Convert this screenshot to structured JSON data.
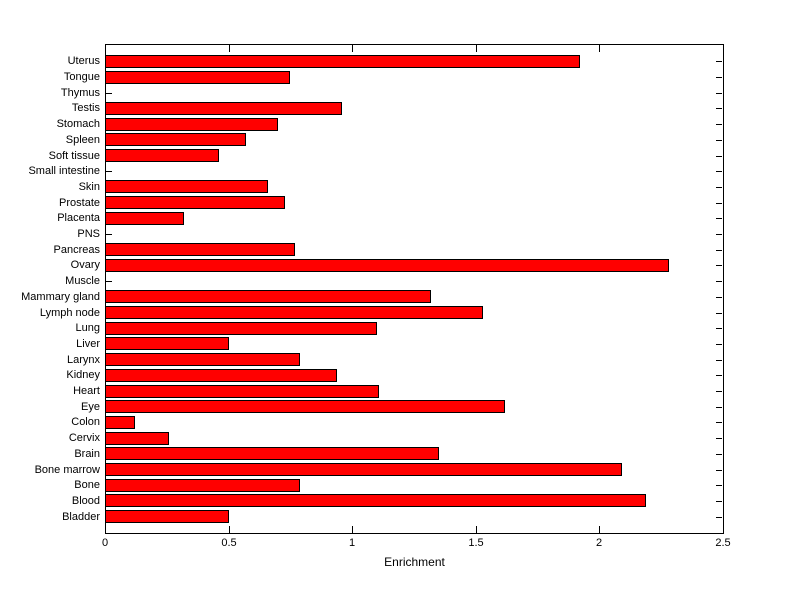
{
  "figure": {
    "background": "#ffffff",
    "axis_color": "#000000",
    "text_color": "#000000"
  },
  "chart_data": {
    "type": "bar",
    "orientation": "horizontal",
    "title": "",
    "xlabel": "Enrichment",
    "ylabel": "",
    "xlim": [
      0,
      2.5
    ],
    "xticks": [
      0,
      0.5,
      1,
      1.5,
      2,
      2.5
    ],
    "xtick_labels": [
      "0",
      "0.5",
      "1",
      "1.5",
      "2",
      "2.5"
    ],
    "grid": false,
    "legend_position": "none",
    "bar_color": "#ff0000",
    "bar_edge_color": "#000000",
    "categories": [
      "Uterus",
      "Tongue",
      "Thymus",
      "Testis",
      "Stomach",
      "Spleen",
      "Soft tissue",
      "Small intestine",
      "Skin",
      "Prostate",
      "Placenta",
      "PNS",
      "Pancreas",
      "Ovary",
      "Muscle",
      "Mammary gland",
      "Lymph node",
      "Lung",
      "Liver",
      "Larynx",
      "Kidney",
      "Heart",
      "Eye",
      "Colon",
      "Cervix",
      "Brain",
      "Bone marrow",
      "Bone",
      "Blood",
      "Bladder"
    ],
    "values": [
      1.92,
      0.75,
      0,
      0.96,
      0.7,
      0.57,
      0.46,
      0,
      0.66,
      0.73,
      0.32,
      0,
      0.77,
      2.28,
      0,
      1.32,
      1.53,
      1.1,
      0.5,
      0.79,
      0.94,
      1.11,
      1.62,
      0.12,
      0.26,
      1.35,
      2.09,
      0.79,
      2.19,
      0.5
    ]
  }
}
